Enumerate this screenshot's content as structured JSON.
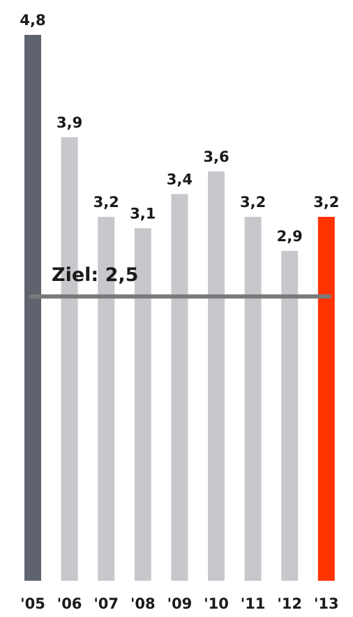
{
  "chart_data": {
    "type": "bar",
    "categories": [
      "'05",
      "'06",
      "'07",
      "'08",
      "'09",
      "'10",
      "'11",
      "'12",
      "'13"
    ],
    "values": [
      4.8,
      3.9,
      3.2,
      3.1,
      3.4,
      3.6,
      3.2,
      2.9,
      3.2
    ],
    "value_labels": [
      "4,8",
      "3,9",
      "3,2",
      "3,1",
      "3,4",
      "3,6",
      "3,2",
      "2,9",
      "3,2"
    ],
    "colors": [
      "#5f636e",
      "#c8c8cc",
      "#c8c8cc",
      "#c8c8cc",
      "#c8c8cc",
      "#c8c8cc",
      "#c8c8cc",
      "#c8c8cc",
      "#ff3300"
    ],
    "ylim": [
      0,
      4.8
    ],
    "target": {
      "value": 2.5,
      "label": "Ziel: 2,5",
      "color": "#7a7a7a"
    }
  }
}
